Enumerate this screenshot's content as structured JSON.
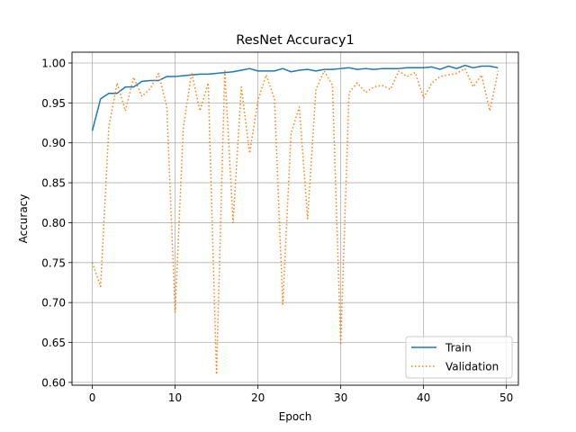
{
  "chart_data": {
    "type": "line",
    "title": "ResNet Accuracy1",
    "xlabel": "Epoch",
    "ylabel": "Accuracy",
    "xlim": [
      -2.45,
      51.45
    ],
    "ylim": [
      0.5965,
      1.0135
    ],
    "xticks": [
      0,
      10,
      20,
      30,
      40,
      50
    ],
    "yticks": [
      0.6,
      0.65,
      0.7,
      0.75,
      0.8,
      0.85,
      0.9,
      0.95,
      1.0
    ],
    "ytick_labels": [
      "0.60",
      "0.65",
      "0.70",
      "0.75",
      "0.80",
      "0.85",
      "0.90",
      "0.95",
      "1.00"
    ],
    "grid": true,
    "legend_position": "lower-right",
    "x": [
      0,
      1,
      2,
      3,
      4,
      5,
      6,
      7,
      8,
      9,
      10,
      11,
      12,
      13,
      14,
      15,
      16,
      17,
      18,
      19,
      20,
      21,
      22,
      23,
      24,
      25,
      26,
      27,
      28,
      29,
      30,
      31,
      32,
      33,
      34,
      35,
      36,
      37,
      38,
      39,
      40,
      41,
      42,
      43,
      44,
      45,
      46,
      47,
      48,
      49
    ],
    "series": [
      {
        "name": "Train",
        "color": "#1f77b4",
        "style": "solid",
        "values": [
          0.915,
          0.955,
          0.962,
          0.962,
          0.97,
          0.97,
          0.977,
          0.978,
          0.978,
          0.983,
          0.983,
          0.984,
          0.985,
          0.986,
          0.986,
          0.987,
          0.988,
          0.989,
          0.991,
          0.993,
          0.99,
          0.99,
          0.99,
          0.993,
          0.989,
          0.991,
          0.992,
          0.99,
          0.992,
          0.992,
          0.993,
          0.994,
          0.992,
          0.993,
          0.992,
          0.993,
          0.993,
          0.993,
          0.994,
          0.994,
          0.994,
          0.995,
          0.992,
          0.996,
          0.993,
          0.997,
          0.994,
          0.996,
          0.996,
          0.994
        ]
      },
      {
        "name": "Validation",
        "color": "#ff7f0e",
        "style": "dotted",
        "values": [
          0.75,
          0.72,
          0.92,
          0.975,
          0.94,
          0.982,
          0.958,
          0.968,
          0.987,
          0.945,
          0.688,
          0.92,
          0.988,
          0.94,
          0.975,
          0.61,
          0.99,
          0.8,
          0.97,
          0.887,
          0.953,
          0.985,
          0.955,
          0.698,
          0.912,
          0.945,
          0.805,
          0.967,
          0.99,
          0.972,
          0.647,
          0.963,
          0.975,
          0.963,
          0.97,
          0.972,
          0.967,
          0.99,
          0.983,
          0.988,
          0.956,
          0.975,
          0.983,
          0.985,
          0.987,
          0.993,
          0.97,
          0.985,
          0.94,
          0.99
        ]
      }
    ]
  }
}
